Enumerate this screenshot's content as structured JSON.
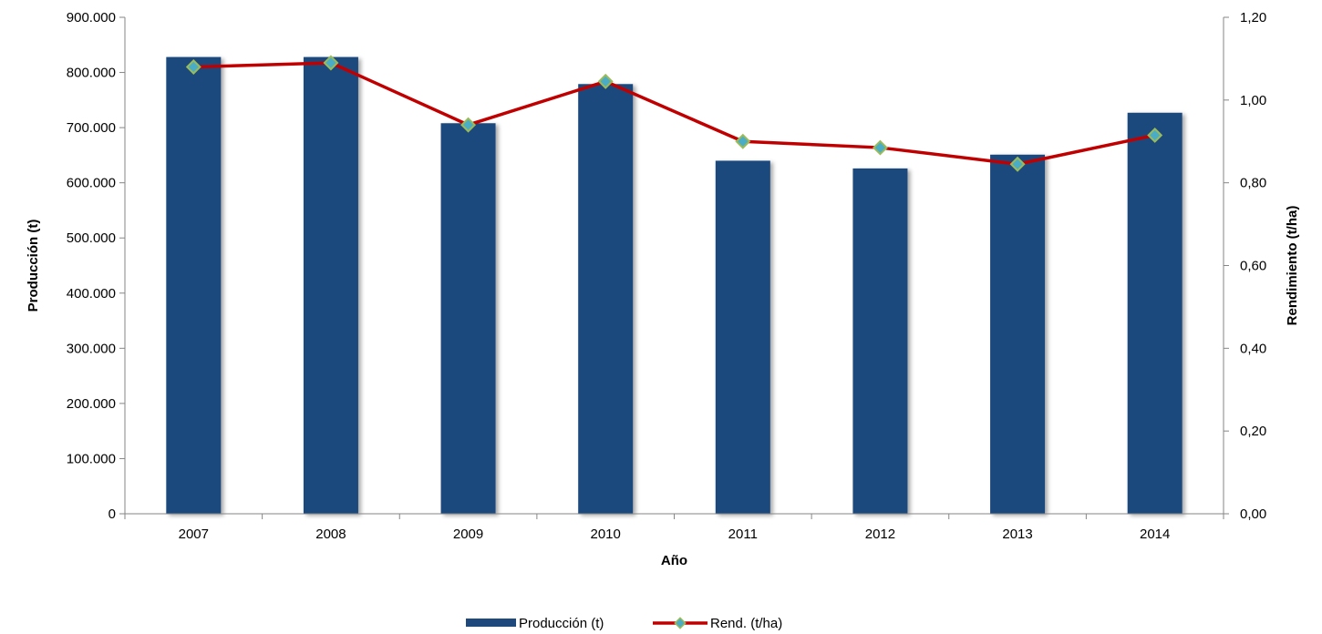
{
  "chart_data": {
    "type": "bar",
    "categories": [
      "2007",
      "2008",
      "2009",
      "2010",
      "2011",
      "2012",
      "2013",
      "2014"
    ],
    "series": [
      {
        "name": "Producción (t)",
        "type": "bar",
        "axis": "left",
        "color": "#1f497d",
        "values": [
          828000,
          828000,
          708000,
          779000,
          640000,
          626000,
          651000,
          727000
        ]
      },
      {
        "name": "Rend. (t/ha)",
        "type": "line",
        "axis": "right",
        "color": "#c00000",
        "marker_fill": "#4bacc6",
        "marker_edge": "#9bbb59",
        "values": [
          1.08,
          1.09,
          0.94,
          1.045,
          0.9,
          0.885,
          0.845,
          0.915
        ]
      }
    ],
    "xlabel": "Año",
    "ylabel": "Producción (t)",
    "y2label": "Rendimiento (t/ha)",
    "ylim": [
      0,
      900000
    ],
    "y2lim": [
      0,
      1.2
    ],
    "yticks": [
      "0",
      "100.000",
      "200.000",
      "300.000",
      "400.000",
      "500.000",
      "600.000",
      "700.000",
      "800.000",
      "900.000"
    ],
    "y2ticks": [
      "0,00",
      "0,20",
      "0,40",
      "0,60",
      "0,80",
      "1,00",
      "1,20"
    ],
    "grid": false,
    "legend": "bottom-center"
  }
}
